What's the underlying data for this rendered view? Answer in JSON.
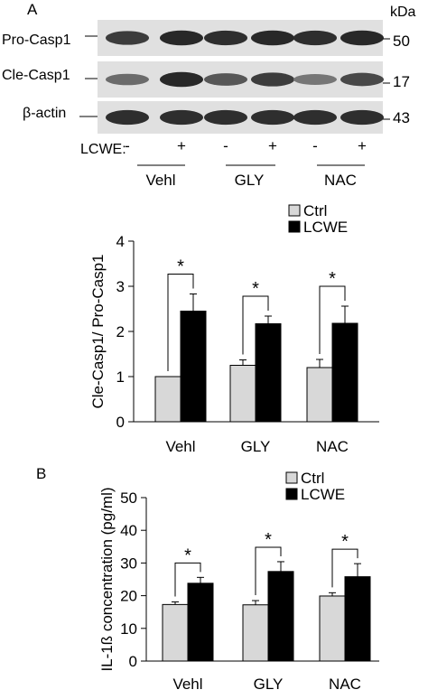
{
  "panel_a": {
    "label": "A",
    "kda_label": "kDa",
    "blot_labels": [
      "Pro-Casp1",
      "Cle-Casp1",
      "β-actin"
    ],
    "kda_values": [
      "50",
      "17",
      "43"
    ],
    "treatment_label": "LCWE:",
    "treatment_signs": [
      "-",
      "+",
      "-",
      "+",
      "-",
      "+"
    ],
    "group_labels": [
      "Vehl",
      "GLY",
      "NAC"
    ],
    "band_intensity": [
      [
        0.78,
        0.88,
        0.85,
        0.88,
        0.85,
        0.88
      ],
      [
        0.55,
        0.88,
        0.65,
        0.78,
        0.5,
        0.72
      ],
      [
        0.85,
        0.85,
        0.85,
        0.85,
        0.85,
        0.85
      ]
    ]
  },
  "panel_b": {
    "label": "B"
  },
  "chart_data": [
    {
      "type": "bar",
      "categories": [
        "Vehl",
        "GLY",
        "NAC"
      ],
      "series": [
        {
          "name": "Ctrl",
          "color": "#d8d8d8",
          "values": [
            1.0,
            1.25,
            1.2
          ],
          "errors": [
            0,
            0.12,
            0.18
          ]
        },
        {
          "name": "LCWE",
          "color": "#000000",
          "values": [
            2.45,
            2.17,
            2.18
          ],
          "errors": [
            0.38,
            0.17,
            0.38
          ]
        }
      ],
      "ylabel": "Cle-Casp1/ Pro-Casp1",
      "ylim": [
        0,
        4
      ],
      "yticks": [
        "0",
        "1",
        "2",
        "3",
        "4"
      ],
      "significance": [
        "*",
        "*",
        "*"
      ],
      "legend": "top-right",
      "grid": false
    },
    {
      "type": "bar",
      "categories": [
        "Vehl",
        "GLY",
        "NAC"
      ],
      "series": [
        {
          "name": "Ctrl",
          "color": "#d8d8d8",
          "values": [
            17.3,
            17.2,
            19.9
          ],
          "errors": [
            0.8,
            1.3,
            1.0
          ]
        },
        {
          "name": "LCWE",
          "color": "#000000",
          "values": [
            23.8,
            27.4,
            25.8
          ],
          "errors": [
            1.8,
            3.0,
            4.0
          ]
        }
      ],
      "ylabel": "IL-1ß concentration (pg/ml)",
      "ylim": [
        0,
        50
      ],
      "yticks": [
        "0",
        "10",
        "20",
        "30",
        "40",
        "50"
      ],
      "significance": [
        "*",
        "*",
        "*"
      ],
      "legend": "top-right",
      "grid": false
    }
  ]
}
